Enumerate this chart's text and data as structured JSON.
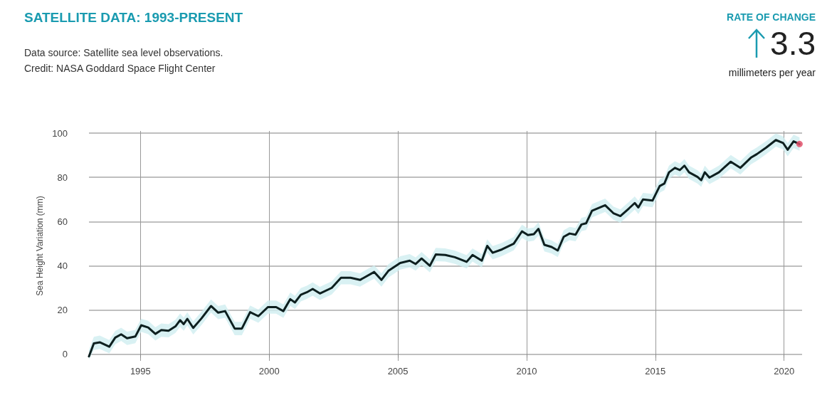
{
  "chart_data": {
    "type": "line",
    "title": "SATELLITE DATA: 1993-PRESENT",
    "ylabel": "Sea Height Variation (mm)",
    "annotations": [
      "Data source: Satellite sea level observations.",
      "Credit: NASA Goddard Space Flight Center",
      "RATE OF CHANGE",
      "3.3",
      "millimeters per year"
    ],
    "series": [
      {
        "color": "#0d1f1f",
        "x": [
          1993.0,
          1993.19,
          1993.42,
          1993.79,
          1994.02,
          1994.25,
          1994.48,
          1994.8,
          1995.03,
          1995.3,
          1995.58,
          1995.81,
          1996.09,
          1996.36,
          1996.54,
          1996.68,
          1996.82,
          1997.05,
          1997.37,
          1997.74,
          1998.02,
          1998.29,
          1998.66,
          1998.94,
          1999.26,
          1999.58,
          1999.95,
          2000.27,
          2000.55,
          2000.82,
          2001.0,
          2001.23,
          2001.46,
          2001.69,
          2001.97,
          2002.43,
          2002.79,
          2003.16,
          2003.53,
          2004.08,
          2004.36,
          2004.63,
          2005.09,
          2005.46,
          2005.69,
          2005.92,
          2006.24,
          2006.47,
          2006.84,
          2007.21,
          2007.67,
          2007.9,
          2008.26,
          2008.47,
          2008.68,
          2009.04,
          2009.5,
          2009.82,
          2010.05,
          2010.28,
          2010.46,
          2010.69,
          2010.97,
          2011.21,
          2011.44,
          2011.67,
          2011.9,
          2012.13,
          2012.31,
          2012.54,
          2013.05,
          2013.37,
          2013.64,
          2013.97,
          2014.2,
          2014.34,
          2014.52,
          2014.89,
          2015.17,
          2015.35,
          2015.53,
          2015.76,
          2015.95,
          2016.13,
          2016.31,
          2016.64,
          2016.78,
          2016.92,
          2017.1,
          2017.47,
          2017.93,
          2018.3,
          2018.71,
          2018.94,
          2019.31,
          2019.68,
          2019.96,
          2020.14,
          2020.37,
          2020.6
        ],
        "values": [
          -1,
          4.9,
          5.4,
          3.4,
          7.5,
          9,
          7.2,
          8,
          13.1,
          12.1,
          9.2,
          10.9,
          10.6,
          12.6,
          15.4,
          13.6,
          16,
          11.9,
          16.2,
          21.8,
          18.8,
          19.5,
          11.6,
          11.6,
          19,
          17.2,
          21.3,
          21.3,
          19.5,
          24.9,
          23.4,
          26.9,
          28,
          29.5,
          27.5,
          30,
          34.6,
          34.6,
          33.6,
          37.2,
          33.6,
          37.7,
          41.3,
          42.3,
          40.8,
          43.3,
          40,
          45.1,
          44.9,
          43.9,
          41.8,
          44.9,
          42.3,
          49,
          45.9,
          47.4,
          50,
          55.6,
          53.9,
          54.3,
          56.7,
          49.5,
          48.5,
          46.9,
          53.1,
          54.6,
          54.1,
          58.7,
          59.2,
          64.9,
          67.4,
          63.8,
          62.5,
          65.9,
          68.4,
          66.4,
          70,
          69.5,
          76.1,
          77.2,
          82.3,
          84.3,
          83.3,
          85.3,
          82.3,
          80.2,
          78.7,
          82.3,
          79.9,
          82.3,
          87.1,
          84.3,
          88.9,
          90.5,
          93.5,
          96.9,
          95.6,
          92.5,
          96.3,
          95.1
        ],
        "lower": [
          -2.5,
          1.9,
          2.4,
          0.4,
          4.5,
          6,
          4.2,
          5,
          10.1,
          9.1,
          6.2,
          7.9,
          7.6,
          9.6,
          12.4,
          10.6,
          13,
          8.9,
          13.2,
          18.8,
          15.8,
          16.5,
          8.6,
          8.6,
          16,
          14.2,
          18.3,
          18.3,
          16.5,
          21.9,
          20.4,
          23.9,
          25,
          26.5,
          24.5,
          27,
          31.6,
          31.6,
          30.6,
          34.2,
          30.6,
          34.7,
          38.3,
          39.3,
          37.8,
          40.3,
          37,
          42.1,
          41.9,
          40.9,
          38.8,
          41.9,
          39.3,
          46,
          42.9,
          44.4,
          47,
          52.6,
          50.9,
          51.3,
          53.7,
          46.5,
          45.5,
          43.9,
          50.1,
          51.6,
          51.1,
          55.7,
          56.2,
          61.9,
          64.4,
          60.8,
          59.5,
          62.9,
          65.4,
          63.4,
          67,
          66.5,
          73.1,
          74.2,
          79.3,
          81.3,
          80.3,
          82.3,
          79.3,
          77.2,
          75.7,
          79.3,
          76.9,
          79.3,
          84.1,
          81.3,
          85.9,
          87.5,
          90.5,
          93.9,
          92.6,
          89.5,
          93.3,
          92.1
        ],
        "upper": [
          2,
          7.9,
          8.4,
          6.4,
          10.5,
          12,
          10.2,
          11,
          16.1,
          15.1,
          12.2,
          13.9,
          13.6,
          15.6,
          18.4,
          16.6,
          19,
          14.9,
          19.2,
          24.8,
          21.8,
          22.5,
          14.6,
          14.6,
          22,
          20.2,
          24.3,
          24.3,
          22.5,
          27.9,
          26.4,
          29.9,
          31,
          32.5,
          30.5,
          33,
          37.6,
          37.6,
          36.6,
          40.2,
          36.6,
          40.7,
          44.3,
          45.3,
          43.8,
          46.3,
          43,
          48.1,
          47.9,
          46.9,
          44.8,
          47.9,
          45.3,
          52,
          48.9,
          50.4,
          53,
          58.6,
          56.9,
          57.3,
          59.7,
          52.5,
          51.5,
          49.9,
          56.1,
          57.6,
          57.1,
          61.7,
          62.2,
          67.9,
          70.4,
          66.8,
          65.5,
          68.9,
          71.4,
          69.4,
          73,
          72.5,
          79.1,
          80.2,
          85.3,
          87.3,
          86.3,
          88.3,
          85.3,
          83.2,
          81.7,
          85.3,
          82.9,
          85.3,
          90.1,
          87.3,
          91.9,
          93.5,
          96.5,
          99.9,
          98.6,
          95.5,
          99.3,
          98.1
        ]
      },
      {
        "type": "scatter",
        "color": "#e0506a",
        "x": [
          2020.6
        ],
        "values": [
          95.1
        ]
      }
    ],
    "xlim": [
      1993,
      2020.7
    ],
    "xticks": [
      1995,
      2000,
      2005,
      2010,
      2015,
      2020
    ],
    "ylim": [
      -3,
      101
    ],
    "yticks": [
      0,
      20,
      40,
      60,
      80,
      100
    ],
    "grid": true,
    "line_style": "solid"
  }
}
